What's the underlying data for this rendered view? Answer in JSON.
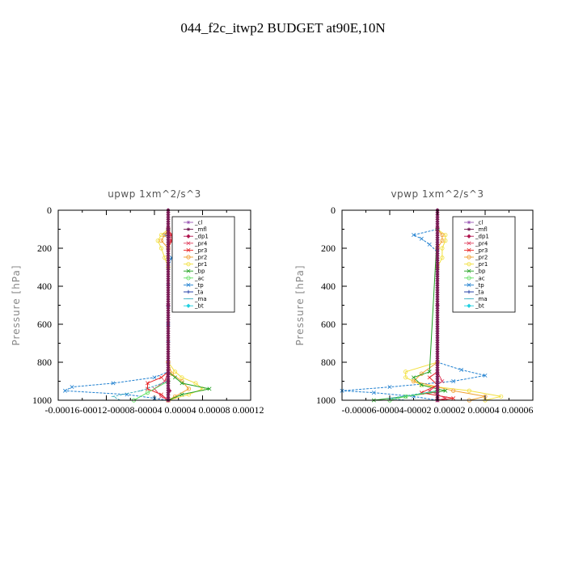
{
  "figure_title": "044_f2c_itwp2  BUDGET at90E,10N",
  "colors": {
    "_cl": "#9b59b6",
    "_mfl": "#6a0f4a",
    "_dp1": "#b0154f",
    "_pr4": "#e0405f",
    "_pr3": "#e82020",
    "_pr2": "#f0a030",
    "_pr1": "#f2e040",
    "_bp": "#20a020",
    "_ac": "#60e060",
    "_tp": "#2080d0",
    "_ta": "#1030a0",
    "_ma": "#40b0c0",
    "_bt": "#20d0e0"
  },
  "chart_data": [
    {
      "type": "line",
      "title": "upwp   1xm^2/s^3",
      "ylabel": "Pressure [hPa]",
      "ylim": [
        1000,
        0
      ],
      "y_ticks": [
        0,
        200,
        400,
        600,
        800,
        1000
      ],
      "xlim": [
        -0.00016,
        0.00012
      ],
      "x_tick_text": "-0.00016-00012-00008-00004 0.00004 0.00008 0.00012",
      "legend": [
        "_cl",
        "_mfl",
        "_dp1",
        "_pr4",
        "_pr3",
        "_pr2",
        "_pr1",
        "_bp",
        "_ac",
        "_tp",
        "_ta",
        "_ma",
        "_bt"
      ],
      "legend_position": "top-right",
      "series": [
        {
          "name": "_tp",
          "y": [
            100,
            130,
            150,
            180,
            200,
            250,
            300,
            400,
            500,
            600,
            700,
            800,
            850,
            880,
            910,
            930,
            950,
            970,
            990,
            1000
          ],
          "x": [
            0.0,
            -5e-06,
            1e-05,
            1.5e-05,
            1e-05,
            5e-06,
            0.0,
            0.0,
            0.0,
            0.0,
            0.0,
            0.0,
            0.0,
            -2e-05,
            -8e-05,
            -0.00014,
            -0.00015,
            -6e-05,
            -2e-05,
            0.0
          ]
        },
        {
          "name": "_pr1",
          "y": [
            100,
            130,
            160,
            200,
            250,
            300,
            800,
            850,
            880,
            910,
            940,
            970,
            1000
          ],
          "x": [
            0.0,
            -1e-05,
            -1.5e-05,
            -1e-05,
            -5e-06,
            0.0,
            0.0,
            1e-05,
            2e-05,
            4e-05,
            5e-05,
            3e-05,
            0.0
          ]
        },
        {
          "name": "_pr2",
          "y": [
            100,
            130,
            160,
            200,
            800,
            860,
            900,
            940,
            980,
            1000
          ],
          "x": [
            0.0,
            -5e-06,
            -1e-05,
            0.0,
            0.0,
            5e-06,
            2e-05,
            3e-05,
            1e-05,
            0.0
          ]
        },
        {
          "name": "_bp",
          "y": [
            100,
            850,
            880,
            910,
            940,
            970,
            1000
          ],
          "x": [
            0.0,
            0.0,
            1e-05,
            2e-05,
            6e-05,
            2e-05,
            0.0
          ]
        },
        {
          "name": "_pr3",
          "y": [
            100,
            130,
            160,
            200,
            850,
            880,
            910,
            940,
            970,
            1000
          ],
          "x": [
            0.0,
            5e-06,
            5e-06,
            0.0,
            0.0,
            -1e-05,
            -3e-05,
            -3e-05,
            -1e-05,
            0.0
          ]
        },
        {
          "name": "_pr4",
          "y": [
            100,
            130,
            160,
            200,
            850,
            900,
            940,
            980,
            1000
          ],
          "x": [
            0.0,
            3e-06,
            3e-06,
            0.0,
            0.0,
            -5e-06,
            -2e-05,
            -1e-05,
            0.0
          ]
        },
        {
          "name": "_ac",
          "y": [
            100,
            900,
            960,
            1000
          ],
          "x": [
            0.0,
            0.0,
            -3e-05,
            -5e-05
          ]
        },
        {
          "name": "_ma",
          "y": [
            100,
            900,
            950,
            980,
            1000
          ],
          "x": [
            0.0,
            0.0,
            -4e-05,
            -8e-05,
            -7e-05
          ]
        },
        {
          "name": "_dp1",
          "y": [
            0,
            100,
            500,
            900,
            950,
            1000
          ],
          "x": [
            0.0,
            0.0,
            0.0,
            0.0,
            2e-06,
            0.0
          ]
        },
        {
          "name": "_mfl",
          "y": [
            0,
            100,
            500,
            900,
            1000
          ],
          "x": [
            0.0,
            0.0,
            0.0,
            0.0,
            0.0
          ]
        },
        {
          "name": "_cl",
          "y": [
            0,
            100,
            500,
            900,
            1000
          ],
          "x": [
            0.0,
            0.0,
            0.0,
            0.0,
            0.0
          ]
        }
      ]
    },
    {
      "type": "line",
      "title": "vpwp   1xm^2/s^3",
      "ylabel": "Pressure [hPa]",
      "ylim": [
        1000,
        0
      ],
      "y_ticks": [
        0,
        200,
        400,
        600,
        800,
        1000
      ],
      "xlim": [
        -6e-05,
        6e-05
      ],
      "x_tick_text": "-0.00006-00004-00002 0.00002 0.00004 0.00006",
      "legend": [
        "_cl",
        "_mfl",
        "_dp1",
        "_pr4",
        "_pr3",
        "_pr2",
        "_pr1",
        "_bp",
        "_ac",
        "_tp",
        "_ta",
        "_ma",
        "_bt"
      ],
      "legend_position": "top-right",
      "series": [
        {
          "name": "_tp",
          "y": [
            100,
            130,
            150,
            180,
            220,
            300,
            800,
            840,
            870,
            900,
            930,
            950,
            960,
            980,
            1000
          ],
          "x": [
            0.0,
            -1.5e-05,
            -1e-05,
            -5e-06,
            0.0,
            0.0,
            0.0,
            1.5e-05,
            3e-05,
            1e-05,
            -3e-05,
            -6e-05,
            -4e-05,
            -1.5e-05,
            0.0
          ]
        },
        {
          "name": "_pr1",
          "y": [
            100,
            130,
            160,
            200,
            250,
            300,
            800,
            850,
            880,
            920,
            950,
            980,
            1000
          ],
          "x": [
            0.0,
            5e-06,
            5e-06,
            3e-06,
            3e-06,
            0.0,
            0.0,
            -2e-05,
            -2e-05,
            -1e-05,
            2e-05,
            4e-05,
            3e-05
          ]
        },
        {
          "name": "_pr2",
          "y": [
            100,
            130,
            160,
            200,
            800,
            860,
            900,
            950,
            980,
            1000
          ],
          "x": [
            0.0,
            3e-06,
            3e-06,
            0.0,
            0.0,
            -1e-05,
            -1.5e-05,
            1e-05,
            3e-05,
            2e-05
          ]
        },
        {
          "name": "_bp",
          "y": [
            100,
            850,
            880,
            920,
            950,
            980,
            1000
          ],
          "x": [
            0.0,
            -5e-06,
            -1.5e-05,
            -1e-05,
            5e-06,
            -2e-05,
            -4e-05
          ]
        },
        {
          "name": "_pr3",
          "y": [
            100,
            850,
            880,
            920,
            960,
            990,
            1000
          ],
          "x": [
            0.0,
            0.0,
            -5e-06,
            0.0,
            -1e-05,
            1e-05,
            0.0
          ]
        },
        {
          "name": "_pr4",
          "y": [
            100,
            850,
            900,
            950,
            990,
            1000
          ],
          "x": [
            0.0,
            0.0,
            3e-06,
            -5e-06,
            5e-06,
            0.0
          ]
        },
        {
          "name": "_ac",
          "y": [
            100,
            950,
            980,
            1000
          ],
          "x": [
            0.0,
            0.0,
            -2e-05,
            -3e-05
          ]
        },
        {
          "name": "_ma",
          "y": [
            100,
            950,
            990,
            1000
          ],
          "x": [
            0.0,
            0.0,
            -3e-05,
            -2e-05
          ]
        },
        {
          "name": "_dp1",
          "y": [
            0,
            500,
            1000
          ],
          "x": [
            0.0,
            0.0,
            0.0
          ]
        },
        {
          "name": "_mfl",
          "y": [
            0,
            500,
            1000
          ],
          "x": [
            0.0,
            0.0,
            0.0
          ]
        },
        {
          "name": "_cl",
          "y": [
            0,
            500,
            1000
          ],
          "x": [
            0.0,
            0.0,
            0.0
          ]
        }
      ]
    }
  ]
}
